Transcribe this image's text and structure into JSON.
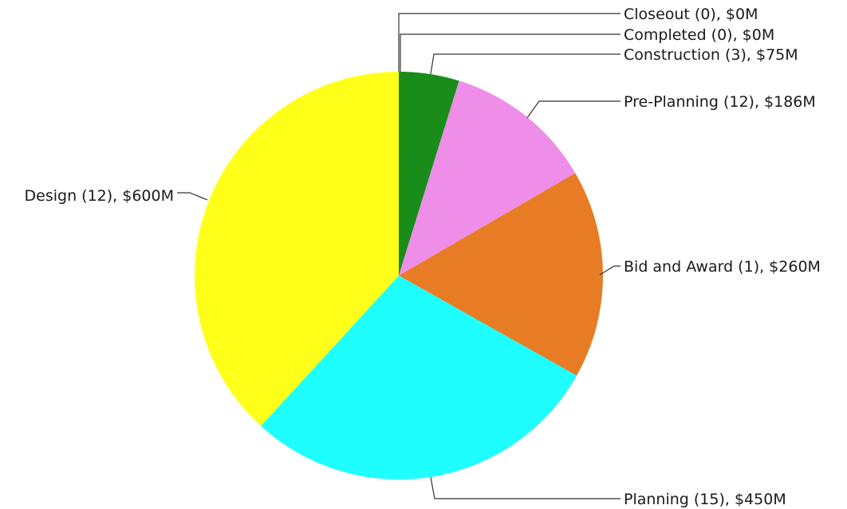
{
  "chart_data": {
    "type": "pie",
    "slices": [
      {
        "label": "Closeout (0), $0M",
        "value": 0,
        "color": "#000000"
      },
      {
        "label": "Completed (0), $0M",
        "value": 0,
        "color": "#000000"
      },
      {
        "label": "Construction (3), $75M",
        "value": 75,
        "color": "#1a8c1a"
      },
      {
        "label": "Pre-Planning (12), $186M",
        "value": 186,
        "color": "#ee8ee8"
      },
      {
        "label": "Bid and Award (1), $260M",
        "value": 260,
        "color": "#e87c25"
      },
      {
        "label": "Planning (15), $450M",
        "value": 450,
        "color": "#1ffefe"
      },
      {
        "label": "Design (12), $600M",
        "value": 600,
        "color": "#ffff1a"
      }
    ],
    "start_angle": "top",
    "direction": "clockwise",
    "legend": "none"
  }
}
